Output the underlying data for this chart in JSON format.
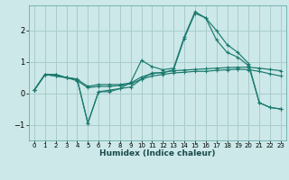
{
  "xlabel": "Humidex (Indice chaleur)",
  "background_color": "#cce8e8",
  "grid_color": "#aacccc",
  "line_color": "#1a7a6e",
  "xlim": [
    -0.5,
    23.5
  ],
  "ylim": [
    -1.5,
    2.8
  ],
  "yticks": [
    -1,
    0,
    1,
    2
  ],
  "xticks": [
    0,
    1,
    2,
    3,
    4,
    5,
    6,
    7,
    8,
    9,
    10,
    11,
    12,
    13,
    14,
    15,
    16,
    17,
    18,
    19,
    20,
    21,
    22,
    23
  ],
  "series": [
    [
      0.1,
      0.6,
      0.6,
      0.5,
      0.45,
      -0.95,
      0.05,
      0.1,
      0.15,
      0.35,
      1.05,
      0.85,
      0.75,
      0.8,
      1.8,
      2.6,
      2.4,
      2.0,
      1.55,
      1.3,
      0.95,
      -0.3,
      -0.45,
      -0.5
    ],
    [
      0.1,
      0.6,
      0.6,
      0.5,
      0.45,
      -0.95,
      0.05,
      0.05,
      0.15,
      0.2,
      0.45,
      0.65,
      0.65,
      0.75,
      1.75,
      2.55,
      2.4,
      1.7,
      1.3,
      1.15,
      0.88,
      -0.3,
      -0.45,
      -0.5
    ],
    [
      0.1,
      0.6,
      0.55,
      0.5,
      0.45,
      0.22,
      0.28,
      0.28,
      0.28,
      0.33,
      0.52,
      0.63,
      0.67,
      0.72,
      0.74,
      0.76,
      0.78,
      0.8,
      0.82,
      0.83,
      0.83,
      0.8,
      0.76,
      0.72
    ],
    [
      0.1,
      0.6,
      0.55,
      0.5,
      0.4,
      0.18,
      0.22,
      0.22,
      0.25,
      0.3,
      0.45,
      0.55,
      0.6,
      0.65,
      0.67,
      0.7,
      0.7,
      0.73,
      0.75,
      0.77,
      0.75,
      0.7,
      0.62,
      0.55
    ]
  ]
}
